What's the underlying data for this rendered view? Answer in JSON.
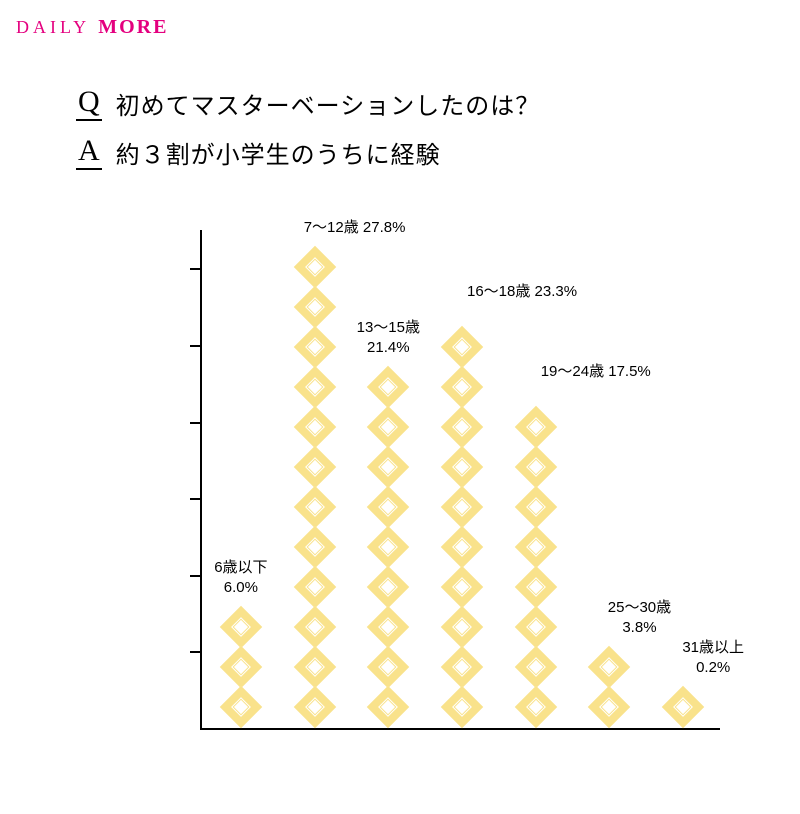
{
  "logo": {
    "part1": "DAILY",
    "part2": "MORE",
    "color1": "#e4007f",
    "color2": "#e4007f"
  },
  "qa": {
    "q_letter": "Q",
    "q_text": "初めてマスターベーションしたのは？",
    "a_letter": "A",
    "a_text": "約３割が小学生のうちに経験",
    "q_fontsize": 24,
    "a_fontsize": 24
  },
  "chart": {
    "type": "bar",
    "background_color": "#ffffff",
    "axis_color": "#000000",
    "diamond_fill": "#f9e28b",
    "diamond_inner": "#ffffff",
    "label_fontsize": 15,
    "label_color": "#000000",
    "ylim": [
      0,
      13
    ],
    "ytick_step": 2,
    "categories": [
      "6歳以下",
      "7〜12歳",
      "13〜15歳",
      "16〜18歳",
      "19〜24歳",
      "25〜30歳",
      "31歳以上"
    ],
    "percent_values": [
      6.0,
      27.8,
      21.4,
      23.3,
      17.5,
      3.8,
      0.2
    ],
    "diamond_counts": [
      3,
      12,
      9,
      10,
      8,
      2,
      1
    ],
    "labels": [
      {
        "lines": [
          "6歳以下",
          "6.0%"
        ],
        "yAbove": 14
      },
      {
        "lines": [
          "7〜12歳 27.8%"
        ],
        "yAbove": 14
      },
      {
        "lines": [
          "13〜15歳",
          "21.4%"
        ],
        "yAbove": 14
      },
      {
        "lines": [
          "16〜18歳 23.3%"
        ],
        "yAbove": 30
      },
      {
        "lines": [
          "19〜24歳 17.5%"
        ],
        "yAbove": 30
      },
      {
        "lines": [
          "25〜30歳",
          "3.8%"
        ],
        "yAbove": 14
      },
      {
        "lines": [
          "31歳以上",
          "0.2%"
        ],
        "yAbove": 14
      }
    ],
    "label_x_shift": [
      0,
      40,
      0,
      60,
      60,
      30,
      30
    ]
  }
}
